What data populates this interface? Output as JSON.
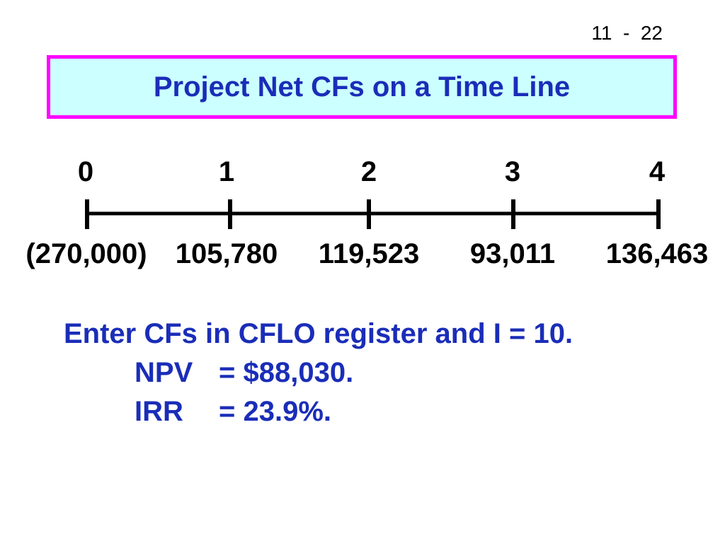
{
  "slide_number": "11  -  22",
  "title": "Project Net CFs on a Time Line",
  "timeline": {
    "periods": [
      "0",
      "1",
      "2",
      "3",
      "4"
    ],
    "cash_flows": [
      "(270,000)",
      "105,780",
      "119,523",
      "93,011",
      "136,463"
    ]
  },
  "notes": {
    "line1": "Enter CFs in CFLO register and I = 10.",
    "npv_label": "NPV",
    "npv_value": "= $88,030.",
    "irr_label": "IRR",
    "irr_value": "= 23.9%."
  },
  "colors": {
    "title_bg": "#ccffff",
    "title_border": "#ff00ff",
    "text_blue": "#1a2db8"
  }
}
